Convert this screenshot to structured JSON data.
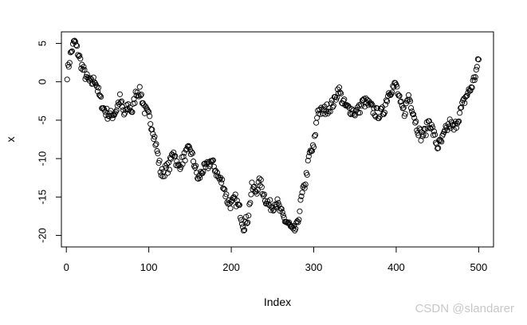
{
  "chart_data": {
    "type": "scatter",
    "xlabel": "Index",
    "ylabel": "x",
    "xlim": [
      -6,
      518
    ],
    "ylim": [
      -21.5,
      6.5
    ],
    "x_ticks": [
      0,
      100,
      200,
      300,
      400,
      500
    ],
    "y_ticks": [
      5,
      0,
      -5,
      -10,
      -15,
      -20
    ],
    "marker": "open-circle",
    "grid": false,
    "anchors": [
      [
        1,
        1.0
      ],
      [
        5,
        3.5
      ],
      [
        10,
        5.3
      ],
      [
        15,
        3.5
      ],
      [
        20,
        1.6
      ],
      [
        25,
        0.4
      ],
      [
        30,
        -0.2
      ],
      [
        35,
        0.3
      ],
      [
        40,
        -1.8
      ],
      [
        45,
        -3.5
      ],
      [
        50,
        -4.2
      ],
      [
        55,
        -4.4
      ],
      [
        60,
        -3.8
      ],
      [
        65,
        -2.2
      ],
      [
        70,
        -4.3
      ],
      [
        75,
        -3.2
      ],
      [
        80,
        -3.8
      ],
      [
        85,
        -1.2
      ],
      [
        90,
        -1.4
      ],
      [
        95,
        -3.6
      ],
      [
        100,
        -4.5
      ],
      [
        105,
        -6.2
      ],
      [
        110,
        -9.0
      ],
      [
        115,
        -12.0
      ],
      [
        120,
        -11.5
      ],
      [
        125,
        -11.0
      ],
      [
        130,
        -8.8
      ],
      [
        135,
        -11.2
      ],
      [
        140,
        -10.4
      ],
      [
        145,
        -9.4
      ],
      [
        150,
        -8.7
      ],
      [
        155,
        -10.6
      ],
      [
        160,
        -12.8
      ],
      [
        165,
        -11.5
      ],
      [
        170,
        -11.2
      ],
      [
        175,
        -10.3
      ],
      [
        180,
        -11.2
      ],
      [
        185,
        -12.6
      ],
      [
        190,
        -13.2
      ],
      [
        195,
        -15.4
      ],
      [
        200,
        -16.0
      ],
      [
        205,
        -15.3
      ],
      [
        210,
        -16.6
      ],
      [
        215,
        -18.8
      ],
      [
        220,
        -17.8
      ],
      [
        225,
        -13.8
      ],
      [
        230,
        -14.2
      ],
      [
        235,
        -13.0
      ],
      [
        240,
        -14.8
      ],
      [
        245,
        -16.0
      ],
      [
        250,
        -16.2
      ],
      [
        255,
        -15.6
      ],
      [
        260,
        -17.0
      ],
      [
        265,
        -18.0
      ],
      [
        270,
        -18.6
      ],
      [
        275,
        -19.6
      ],
      [
        280,
        -18.8
      ],
      [
        285,
        -15.2
      ],
      [
        290,
        -13.0
      ],
      [
        295,
        -9.4
      ],
      [
        300,
        -8.6
      ],
      [
        305,
        -3.6
      ],
      [
        310,
        -4.0
      ],
      [
        315,
        -3.6
      ],
      [
        320,
        -3.2
      ],
      [
        325,
        -2.6
      ],
      [
        330,
        -0.8
      ],
      [
        335,
        -2.6
      ],
      [
        340,
        -3.4
      ],
      [
        345,
        -3.6
      ],
      [
        350,
        -4.0
      ],
      [
        355,
        -3.6
      ],
      [
        360,
        -2.6
      ],
      [
        365,
        -2.8
      ],
      [
        370,
        -3.4
      ],
      [
        375,
        -4.0
      ],
      [
        380,
        -4.2
      ],
      [
        385,
        -3.8
      ],
      [
        390,
        -1.6
      ],
      [
        395,
        -0.8
      ],
      [
        400,
        -0.4
      ],
      [
        405,
        -3.0
      ],
      [
        410,
        -4.0
      ],
      [
        415,
        -1.8
      ],
      [
        420,
        -3.6
      ],
      [
        425,
        -5.8
      ],
      [
        430,
        -7.0
      ],
      [
        435,
        -6.6
      ],
      [
        440,
        -5.0
      ],
      [
        445,
        -6.6
      ],
      [
        450,
        -8.4
      ],
      [
        455,
        -7.8
      ],
      [
        460,
        -6.4
      ],
      [
        465,
        -5.4
      ],
      [
        470,
        -6.2
      ],
      [
        475,
        -4.8
      ],
      [
        480,
        -3.2
      ],
      [
        485,
        -1.8
      ],
      [
        490,
        -1.0
      ],
      [
        495,
        0.5
      ],
      [
        500,
        2.8
      ]
    ]
  },
  "watermark": "CSDN @slandarer"
}
